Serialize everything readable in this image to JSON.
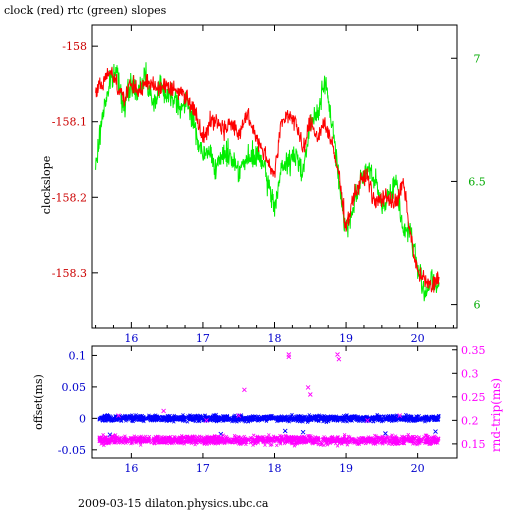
{
  "header": {
    "title": "clock (red) rtc (green) slopes"
  },
  "footer": {
    "text": "2009-03-15  dilaton.physics.ubc.ca"
  },
  "colors": {
    "clock": "#ff0000",
    "rtc": "#00ee00",
    "offset": "#0000ff",
    "rndtrip": "#ff00ff",
    "axis": "#000000",
    "left_axis_top": "#cc0000",
    "right_axis_top": "#00bb00"
  },
  "chart_data": [
    {
      "type": "line",
      "title": "clock (red) rtc (green) slopes",
      "ylabel": "clockslope",
      "xlim": [
        15.45,
        20.55
      ],
      "ylim": [
        -158.373,
        -157.972
      ],
      "x_ticks": [
        16,
        17,
        18,
        19,
        20
      ],
      "x_tick_labels": [
        "16",
        "17",
        "18",
        "19",
        "20"
      ],
      "y_ticks": [
        -158,
        -158.1,
        -158.2,
        -158.3
      ],
      "y_tick_labels": [
        "-158",
        "-158.1",
        "-158.2",
        "-158.3"
      ],
      "y2lim": [
        5.905,
        7.135
      ],
      "y2_ticks": [
        7,
        6.5,
        6
      ],
      "y2_tick_labels": [
        "7",
        "6.5",
        "6"
      ],
      "series": [
        {
          "color": "#ff0000",
          "axis": "left",
          "x": [
            15.5,
            15.6,
            15.7,
            15.8,
            15.9,
            16.0,
            16.1,
            16.2,
            16.3,
            16.4,
            16.5,
            16.6,
            16.7,
            16.8,
            16.9,
            17.0,
            17.1,
            17.2,
            17.3,
            17.4,
            17.5,
            17.6,
            17.7,
            17.8,
            17.9,
            18.0,
            18.1,
            18.2,
            18.3,
            18.4,
            18.5,
            18.6,
            18.7,
            18.8,
            18.9,
            19.0,
            19.1,
            19.2,
            19.3,
            19.4,
            19.5,
            19.6,
            19.7,
            19.8,
            19.9,
            20.0,
            20.1,
            20.2,
            20.3
          ],
          "values": [
            -158.06,
            -158.05,
            -158.03,
            -158.05,
            -158.07,
            -158.05,
            -158.06,
            -158.05,
            -158.05,
            -158.055,
            -158.05,
            -158.06,
            -158.06,
            -158.07,
            -158.09,
            -158.12,
            -158.1,
            -158.1,
            -158.11,
            -158.1,
            -158.12,
            -158.09,
            -158.11,
            -158.13,
            -158.15,
            -158.17,
            -158.1,
            -158.09,
            -158.1,
            -158.14,
            -158.1,
            -158.12,
            -158.1,
            -158.13,
            -158.17,
            -158.24,
            -158.2,
            -158.18,
            -158.17,
            -158.21,
            -158.2,
            -158.2,
            -158.21,
            -158.18,
            -158.25,
            -158.3,
            -158.31,
            -158.32,
            -158.3
          ]
        },
        {
          "color": "#00ee00",
          "axis": "right",
          "x": [
            15.5,
            15.6,
            15.7,
            15.8,
            15.9,
            16.0,
            16.1,
            16.2,
            16.3,
            16.4,
            16.5,
            16.6,
            16.7,
            16.8,
            16.9,
            17.0,
            17.1,
            17.2,
            17.3,
            17.4,
            17.5,
            17.6,
            17.7,
            17.8,
            17.9,
            18.0,
            18.1,
            18.2,
            18.3,
            18.4,
            18.5,
            18.6,
            18.7,
            18.8,
            18.9,
            19.0,
            19.1,
            19.2,
            19.3,
            19.4,
            19.5,
            19.6,
            19.7,
            19.8,
            19.9,
            20.0,
            20.1,
            20.2,
            20.3
          ],
          "values": [
            6.55,
            6.78,
            6.9,
            6.95,
            6.8,
            6.9,
            6.85,
            6.95,
            6.8,
            6.9,
            6.85,
            6.85,
            6.8,
            6.82,
            6.7,
            6.6,
            6.62,
            6.55,
            6.62,
            6.6,
            6.55,
            6.58,
            6.6,
            6.6,
            6.5,
            6.4,
            6.55,
            6.58,
            6.6,
            6.55,
            6.72,
            6.78,
            6.9,
            6.75,
            6.5,
            6.3,
            6.4,
            6.5,
            6.55,
            6.5,
            6.4,
            6.45,
            6.5,
            6.3,
            6.3,
            6.15,
            6.05,
            6.1,
            6.05
          ]
        }
      ]
    },
    {
      "type": "scatter",
      "ylabel": "offset(ms)",
      "y2label": "rnd-trip(ms)",
      "xlim": [
        15.45,
        20.55
      ],
      "ylim": [
        -0.063,
        0.115
      ],
      "x_ticks": [
        16,
        17,
        18,
        19,
        20
      ],
      "x_tick_labels": [
        "16",
        "17",
        "18",
        "19",
        "20"
      ],
      "y_ticks": [
        0.1,
        0.05,
        0,
        -0.05
      ],
      "y_tick_labels": [
        "0.1",
        "0.05",
        "0",
        "-0.05"
      ],
      "y2lim": [
        0.12,
        0.358
      ],
      "y2_ticks": [
        0.35,
        0.3,
        0.25,
        0.2,
        0.15
      ],
      "y2_tick_labels": [
        "0.35",
        "0.3",
        "0.25",
        "0.2",
        "0.15"
      ],
      "series": [
        {
          "color": "#0000ff",
          "axis": "left",
          "marker": "x",
          "band": {
            "x": [
              15.55,
              20.3
            ],
            "center": 0.0,
            "spread": 0.007
          },
          "outliers": {
            "x": [
              15.7,
              17.25,
              18.15,
              18.4,
              19.55,
              20.25
            ],
            "y": [
              -0.026,
              -0.025,
              -0.02,
              -0.022,
              -0.024,
              -0.021
            ]
          }
        },
        {
          "color": "#ff00ff",
          "axis": "right",
          "marker": "x",
          "band": {
            "x": [
              15.55,
              20.3
            ],
            "center": 0.158,
            "spread": 0.013
          },
          "outliers": {
            "x": [
              15.82,
              16.45,
              17.05,
              17.5,
              17.58,
              18.2,
              18.2,
              18.47,
              18.5,
              18.88,
              18.9,
              19.3,
              19.75
            ],
            "y": [
              0.21,
              0.22,
              0.2,
              0.21,
              0.265,
              0.34,
              0.335,
              0.27,
              0.255,
              0.34,
              0.33,
              0.2,
              0.21
            ]
          }
        }
      ]
    }
  ]
}
